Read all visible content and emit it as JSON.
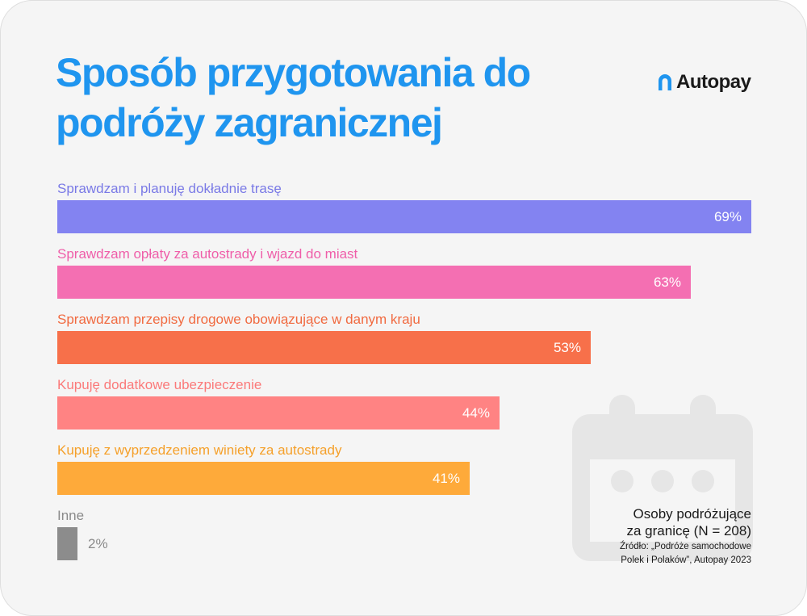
{
  "title_line1": "Sposób przygotowania do",
  "title_line2": "podróży zagranicznej",
  "brand": {
    "name": "Autopay",
    "color": "#1f95ef",
    "icon": "autopay-logo-icon"
  },
  "chart_data": {
    "type": "bar",
    "orientation": "horizontal",
    "value_max": 69,
    "unit": "%",
    "categories": [
      "Sprawdzam i planuję dokładnie trasę",
      "Sprawdzam opłaty za autostrady i wjazd do miast",
      "Sprawdzam przepisy drogowe obowiązujące w danym kraju",
      "Kupuję dodatkowe ubezpieczenie",
      "Kupuję z wyprzedzeniem winiety za autostrady",
      "Inne"
    ],
    "values": [
      69,
      63,
      53,
      44,
      41,
      2
    ],
    "value_labels": [
      "69%",
      "63%",
      "53%",
      "44%",
      "41%",
      "2%"
    ],
    "colors": [
      "#8383f1",
      "#f46fb2",
      "#f7704a",
      "#ff8383",
      "#feaa3a",
      "#8c8c8c"
    ],
    "label_colors": [
      "#7a7ae6",
      "#ef5ea9",
      "#f16a40",
      "#fb7a7a",
      "#f5a02a",
      "#8a8a8a"
    ],
    "legend": "none",
    "grid": false
  },
  "footnote": {
    "line1": "Osoby podróżujące",
    "line2": "za granicę (N = 208)",
    "source1": "Źródło: „Podróże samochodowe",
    "source2": "Polek i Polaków”, Autopay 2023"
  },
  "decoration": {
    "icon": "calendar-icon",
    "color": "#e6e6e6"
  }
}
